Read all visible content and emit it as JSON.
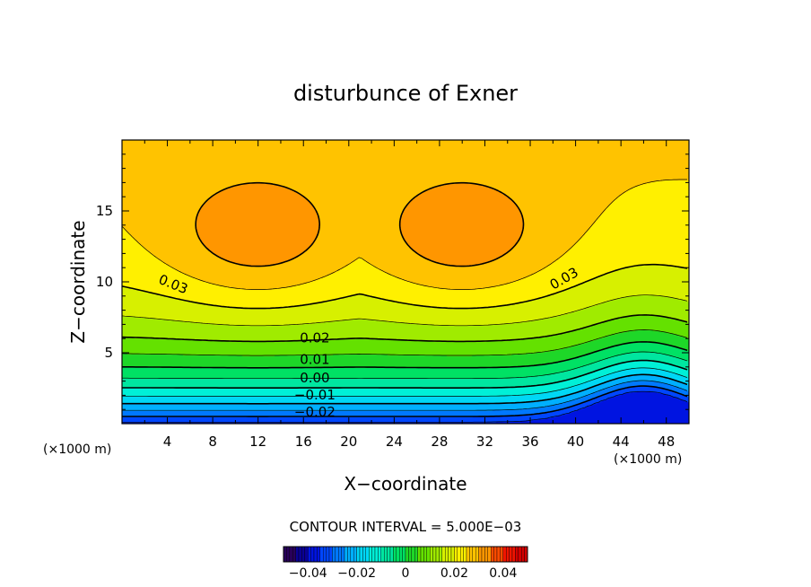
{
  "chart_data": {
    "type": "heatmap",
    "subtype": "filled-contour",
    "title": "disturbunce of Exner",
    "xlabel": "X−coordinate",
    "ylabel": "Z−coordinate",
    "x_unit_left": "(×1000 m)",
    "x_unit_right": "(×1000 m)",
    "xlim": [
      0,
      50
    ],
    "ylim": [
      0,
      20
    ],
    "x_ticks": [
      4,
      8,
      12,
      16,
      20,
      24,
      28,
      32,
      36,
      40,
      44,
      48
    ],
    "x_tick_labels": [
      "4",
      "8",
      "12",
      "16",
      "20",
      "24",
      "28",
      "32",
      "36",
      "40",
      "44",
      "48"
    ],
    "y_ticks": [
      5,
      10,
      15
    ],
    "y_tick_labels": [
      "5",
      "10",
      "15"
    ],
    "contour_interval_text": "CONTOUR INTERVAL = 5.000E−03",
    "contour_interval": 0.005,
    "contour_labels": [
      {
        "text": "0.03",
        "x": 4.5,
        "z": 9.8,
        "angle": 22
      },
      {
        "text": "0.03",
        "x": 39.0,
        "z": 10.2,
        "angle": -30
      },
      {
        "text": "0.02",
        "x": 17.0,
        "z": 6.0,
        "angle": 0
      },
      {
        "text": "0.01",
        "x": 17.0,
        "z": 4.5,
        "angle": 0
      },
      {
        "text": "0.00",
        "x": 17.0,
        "z": 3.2,
        "angle": 0
      },
      {
        "text": "−0.01",
        "x": 17.0,
        "z": 2.0,
        "angle": 0
      },
      {
        "text": "−0.02",
        "x": 17.0,
        "z": 0.8,
        "angle": 0
      }
    ],
    "colorbar": {
      "range": [
        -0.05,
        0.05
      ],
      "ticks": [
        -0.04,
        -0.02,
        0,
        0.02,
        0.04
      ],
      "tick_labels": [
        "−0.04",
        "−0.02",
        "0",
        "0.02",
        "0.04"
      ]
    },
    "field_description": "Exner function perturbation: positive maximum ~0.036 near x=12-32 km, z=12-13 km; decreasing downward to ~-0.035 at the surface, with a bulge of tightly packed contours near x=46 km",
    "max_value": 0.037,
    "min_value": -0.036
  }
}
